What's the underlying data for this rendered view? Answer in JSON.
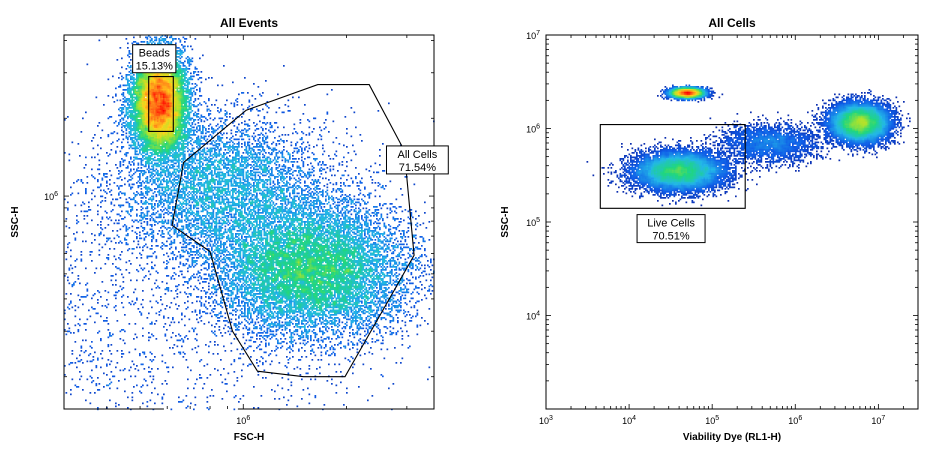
{
  "chart_data": [
    {
      "type": "scatter",
      "plot_style": "pseudocolor density (flow cytometry)",
      "title": "All Events",
      "xlabel": "FSC-H",
      "ylabel": "SSC-H",
      "xscale": "log",
      "yscale": "log",
      "xlim": [
        300000,
        3600000
      ],
      "ylim": [
        150000,
        4200000
      ],
      "x_ticks": [
        {
          "value": 1000000,
          "label": "10^6"
        }
      ],
      "y_ticks": [
        {
          "value": 1000000,
          "label": "10^6"
        }
      ],
      "populations": [
        {
          "name": "debris",
          "center": [
            380000,
            310000
          ],
          "spread": [
            0.42,
            0.35
          ],
          "density": "low"
        },
        {
          "name": "upper population",
          "center": [
            860000,
            1080000
          ],
          "spread": [
            0.16,
            0.14
          ],
          "density": "medium"
        },
        {
          "name": "lower population",
          "center": [
            1580000,
            520000
          ],
          "spread": [
            0.14,
            0.13
          ],
          "density": "high"
        },
        {
          "name": "beads",
          "center": [
            570000,
            2300000
          ],
          "spread": [
            0.04,
            0.1
          ],
          "density": "high"
        }
      ],
      "gates": [
        {
          "label": "Beads",
          "percent": "15.13%",
          "polygon": [
            [
              530000,
              2900000
            ],
            [
              625000,
              2900000
            ],
            [
              625000,
              1780000
            ],
            [
              530000,
              1780000
            ]
          ],
          "label_anchor": [
            550000,
            3400000
          ]
        },
        {
          "label": "All Cells",
          "percent": "71.54%",
          "polygon": [
            [
              1650000,
              2700000
            ],
            [
              2330000,
              2700000
            ],
            [
              2950000,
              1500000
            ],
            [
              3150000,
              590000
            ],
            [
              1980000,
              200000
            ],
            [
              1500000,
              200000
            ],
            [
              1100000,
              210000
            ],
            [
              930000,
              300000
            ],
            [
              800000,
              610000
            ],
            [
              620000,
              770000
            ],
            [
              670000,
              1350000
            ],
            [
              1020000,
              2150000
            ]
          ],
          "label_anchor": [
            3220000,
            1380000
          ]
        }
      ],
      "axis_line_bottom_cutout": [
        0.27,
        0.47
      ],
      "density_colors": [
        "#0a1f9e",
        "#0f5de8",
        "#23b7e8",
        "#1fd67f",
        "#a8e32e",
        "#ffd21c",
        "#ff7a18",
        "#ff0000"
      ]
    },
    {
      "type": "scatter",
      "plot_style": "pseudocolor density (flow cytometry)",
      "title": "All Cells",
      "xlabel": "Viability Dye (RL1-H)",
      "ylabel": "SSC-H",
      "xscale": "log",
      "yscale": "log",
      "xlim": [
        1000,
        30000000
      ],
      "ylim": [
        1000,
        10000000
      ],
      "x_ticks": [
        {
          "value": 1000,
          "label": "10^3"
        },
        {
          "value": 10000,
          "label": "10^4"
        },
        {
          "value": 100000,
          "label": "10^5"
        },
        {
          "value": 1000000,
          "label": "10^6"
        },
        {
          "value": 10000000,
          "label": "10^7"
        }
      ],
      "y_ticks": [
        {
          "value": 10000,
          "label": "10^4"
        },
        {
          "value": 100000,
          "label": "10^5"
        },
        {
          "value": 1000000,
          "label": "10^6"
        },
        {
          "value": 10000000,
          "label": "10^7"
        }
      ],
      "populations": [
        {
          "name": "live",
          "center": [
            40000,
            350000
          ],
          "spread": [
            0.26,
            0.1
          ],
          "density": "high"
        },
        {
          "name": "dead",
          "center": [
            6000000,
            1150000
          ],
          "spread": [
            0.17,
            0.1
          ],
          "density": "high"
        },
        {
          "name": "bridge",
          "center": [
            500000,
            700000
          ],
          "spread": [
            0.28,
            0.1
          ],
          "density": "low"
        },
        {
          "name": "small cluster",
          "center": [
            50000,
            2400000
          ],
          "spread": [
            0.1,
            0.025
          ],
          "density": "medium"
        }
      ],
      "gates": [
        {
          "label": "Live Cells",
          "percent": "70.51%",
          "polygon": [
            [
              4500,
              1100000
            ],
            [
              250000,
              1100000
            ],
            [
              250000,
              140000
            ],
            [
              4500,
              140000
            ]
          ],
          "label_anchor": [
            32000,
            85000
          ]
        }
      ],
      "density_colors": [
        "#0a1f9e",
        "#0f5de8",
        "#23b7e8",
        "#1fd67f",
        "#a8e32e",
        "#ffd21c",
        "#ff7a18",
        "#ff0000"
      ]
    }
  ]
}
